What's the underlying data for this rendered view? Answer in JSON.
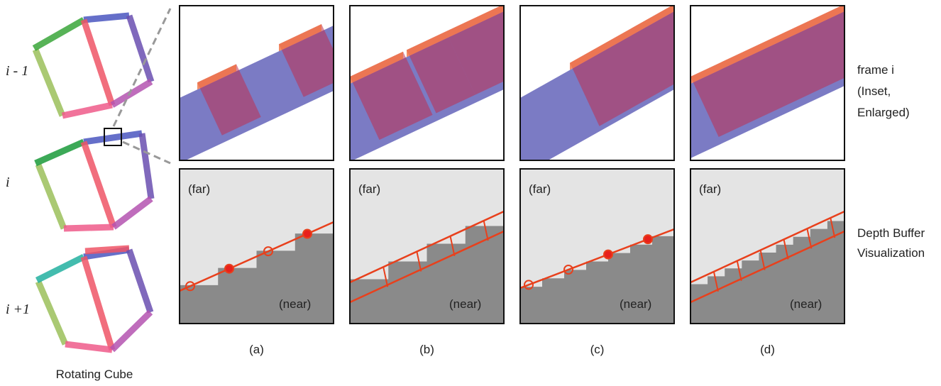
{
  "rows": {
    "labels": [
      "i - 1",
      "i",
      "i +1"
    ],
    "caption": "Rotating Cube"
  },
  "panels": [
    {
      "far": "(far)",
      "near": "(near)",
      "caption": "(a)"
    },
    {
      "far": "(far)",
      "near": "(near)",
      "caption": "(b)"
    },
    {
      "far": "(far)",
      "near": "(near)",
      "caption": "(c)"
    },
    {
      "far": "(far)",
      "near": "(near)",
      "caption": "(d)"
    }
  ],
  "side_labels": {
    "inset": [
      "frame i",
      "(Inset,",
      "Enlarged)"
    ],
    "depth": [
      "Depth Buffer",
      "Visualization"
    ]
  }
}
